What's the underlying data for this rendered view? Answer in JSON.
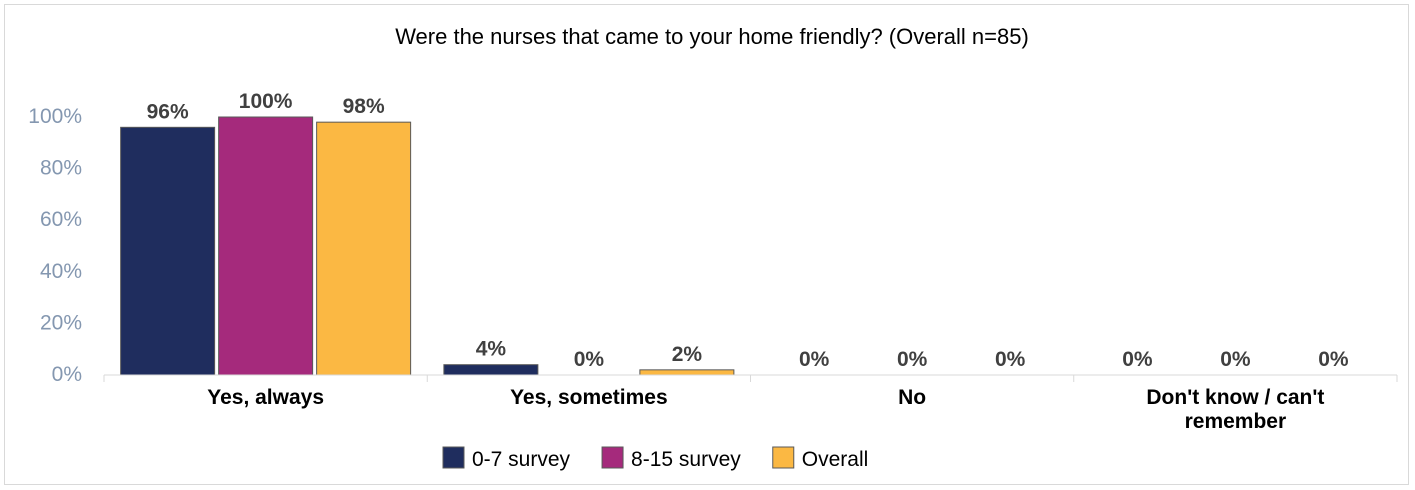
{
  "chart_data": {
    "type": "bar",
    "title": "Were the nurses that came to your home friendly? (Overall n=85)",
    "xlabel": "",
    "ylabel": "",
    "categories": [
      "Yes, always",
      "Yes, sometimes",
      "No",
      "Don't know / can't remember"
    ],
    "series": [
      {
        "name": "0-7 survey",
        "color": "#1f2d5e",
        "values": [
          96,
          4,
          0,
          0
        ],
        "labels": [
          "96%",
          "4%",
          "0%",
          "0%"
        ]
      },
      {
        "name": "8-15 survey",
        "color": "#a52a7c",
        "values": [
          100,
          0,
          0,
          0
        ],
        "labels": [
          "100%",
          "0%",
          "0%",
          "0%"
        ]
      },
      {
        "name": "Overall",
        "color": "#fbb843",
        "values": [
          98,
          2,
          0,
          0
        ],
        "labels": [
          "98%",
          "2%",
          "0%",
          "0%"
        ]
      }
    ],
    "ylim": [
      0,
      100
    ],
    "y_ticks": [
      {
        "value": 0,
        "label": "0%"
      },
      {
        "value": 20,
        "label": "20%"
      },
      {
        "value": 40,
        "label": "40%"
      },
      {
        "value": 60,
        "label": "60%"
      },
      {
        "value": 80,
        "label": "80%"
      },
      {
        "value": 100,
        "label": "100%"
      }
    ],
    "grid": false,
    "legend_position": "bottom"
  },
  "colors": {
    "axis_tick_text": "#8497b0",
    "baseline": "#d9d9d9",
    "bar_border": "#595959",
    "text": "#000000",
    "data_label": "#404040"
  }
}
